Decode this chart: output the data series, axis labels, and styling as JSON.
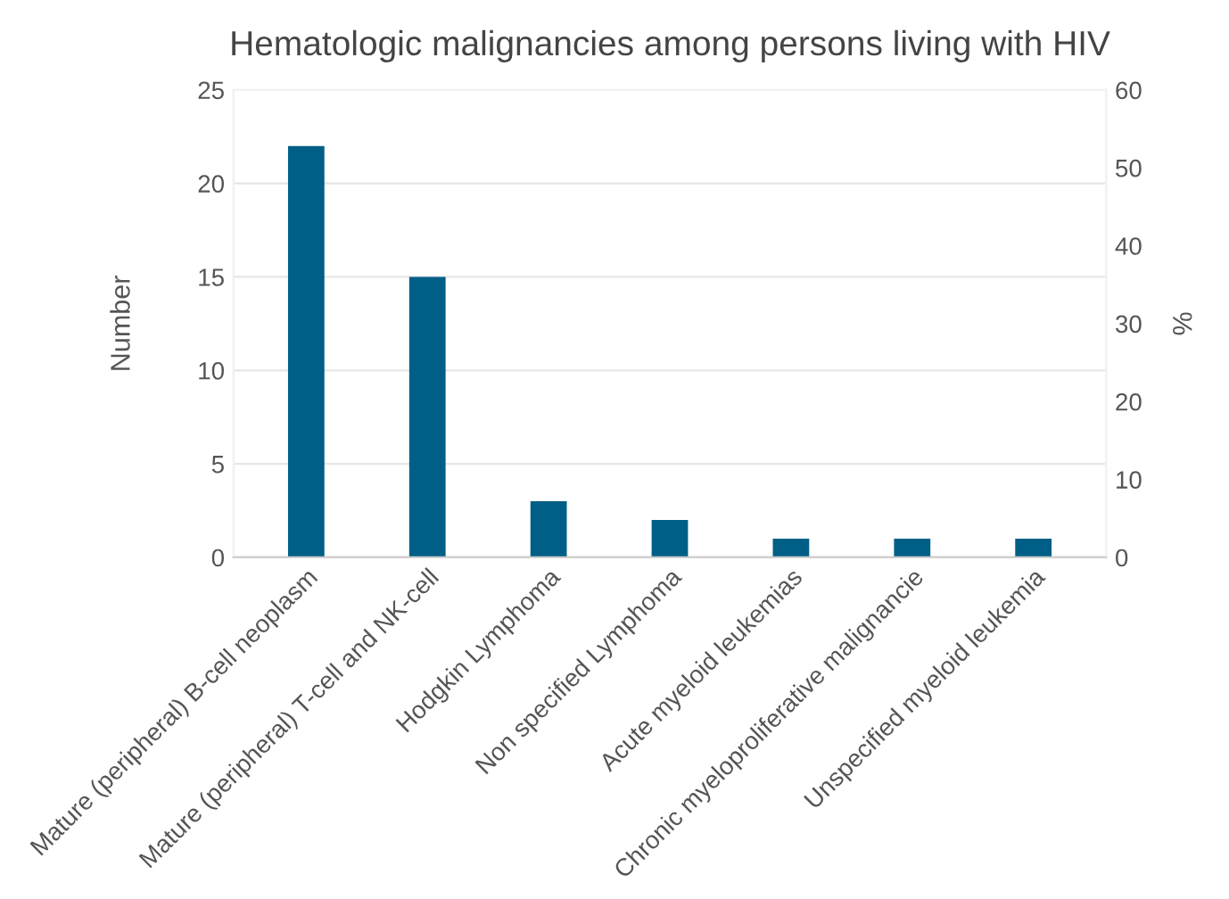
{
  "chart_data": {
    "type": "bar",
    "title": "Hematologic malignancies among persons living with HIV",
    "ylabel": "Number",
    "y2label": "%",
    "categories": [
      "Mature (peripheral) B-cell neoplasm",
      "Mature (peripheral) T-cell and NK-cell",
      "Hodgkin Lymphoma",
      "Non specified Lymphoma",
      "Acute myeloid leukemias",
      "Chronic myeloproliferative malignancie",
      "Unspecified myeloid leukemia"
    ],
    "values": [
      22,
      15,
      3,
      2,
      1,
      1,
      1
    ],
    "color": "#005f86",
    "ylim": [
      0,
      25
    ],
    "yticks": [
      0,
      5,
      10,
      15,
      20,
      25
    ],
    "y2lim": [
      0,
      60
    ],
    "y2ticks": [
      0,
      10,
      20,
      30,
      40,
      50,
      60
    ],
    "grid": "y"
  }
}
